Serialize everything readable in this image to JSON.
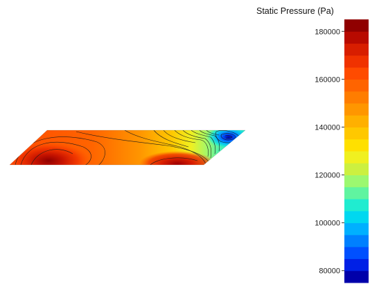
{
  "chart_data": {
    "type": "heatmap",
    "title": "",
    "colorbar": {
      "title": "Static Pressure (Pa)",
      "min": 75000,
      "max": 185000,
      "levels": 22,
      "ticks": [
        180000,
        160000,
        140000,
        120000,
        100000,
        80000
      ],
      "tick_labels": [
        "180000",
        "160000",
        "140000",
        "120000",
        "100000",
        "80000"
      ],
      "colors_low_to_high": [
        "#0000aa",
        "#0020e6",
        "#0050ff",
        "#0080ff",
        "#00b0ff",
        "#00d8f0",
        "#20ecd0",
        "#60f4a0",
        "#9cf870",
        "#ccf040",
        "#f0f020",
        "#ffe000",
        "#ffc800",
        "#ffb000",
        "#ff9600",
        "#ff7d00",
        "#ff6400",
        "#ff4b00",
        "#f03200",
        "#d81e00",
        "#b80a00",
        "#900000"
      ]
    },
    "field": {
      "description_levels": "contour bands shown on swept blade section",
      "high_zones_pa": [
        172000,
        170000
      ],
      "low_zone_pa": 90000
    }
  }
}
